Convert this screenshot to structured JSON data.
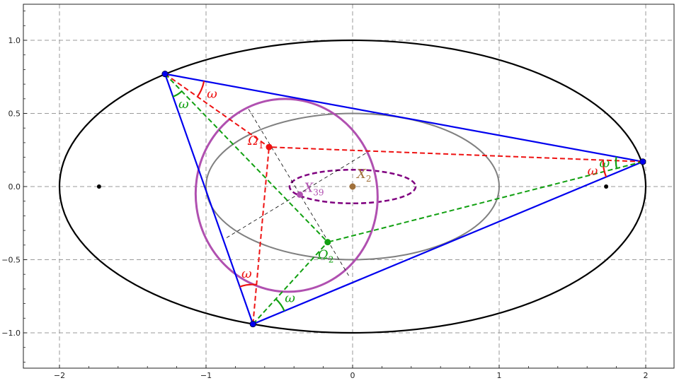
{
  "chart_data": {
    "type": "diagram",
    "xlim": [
      -2.25,
      2.25
    ],
    "ylim": [
      -1.25,
      1.25
    ],
    "grid": true,
    "x_ticks": [
      {
        "v": -2,
        "label": "−2"
      },
      {
        "v": -1,
        "label": "−1"
      },
      {
        "v": 0,
        "label": "0"
      },
      {
        "v": 1,
        "label": "1"
      },
      {
        "v": 2,
        "label": "2"
      }
    ],
    "y_ticks": [
      {
        "v": 1.0,
        "label": "1.0"
      },
      {
        "v": 0.5,
        "label": "0.5"
      },
      {
        "v": 0.0,
        "label": "0.0"
      },
      {
        "v": -0.5,
        "label": "−0.5"
      },
      {
        "v": -1.0,
        "label": "−1.0"
      }
    ],
    "outer_ellipse": {
      "cx": 0,
      "cy": 0,
      "rx": 2.0,
      "ry": 1.0
    },
    "inner_ellipse": {
      "cx": 0,
      "cy": 0,
      "rx": 1.0,
      "ry": 0.5
    },
    "dashed_ellipse": {
      "cx": 0,
      "cy": 0,
      "rx": 0.43,
      "ry": 0.115
    },
    "caustic_ellipse": {
      "cx": -0.45,
      "cy": -0.06,
      "rx": 0.62,
      "ry": 0.66,
      "rotation_deg": 8
    },
    "foci": [
      [
        -1.73,
        0
      ],
      [
        1.73,
        0
      ]
    ],
    "triangle": [
      [
        -1.28,
        0.77
      ],
      [
        1.98,
        0.17
      ],
      [
        -0.68,
        -0.94
      ]
    ],
    "brocard_1": [
      -0.57,
      0.27
    ],
    "brocard_2": [
      -0.17,
      -0.38
    ],
    "centroid": [
      0,
      0
    ],
    "x39": [
      -0.36,
      -0.055
    ],
    "labels": {
      "omega1_main": "Ω",
      "omega1_sub": "1",
      "omega2_main": "Ω",
      "omega2_sub": "2",
      "x2_main": "X",
      "x2_sub": "2",
      "x39_main": "X",
      "x39_sub": "39",
      "angle": "ω"
    },
    "colors": {
      "triangle": "#0000ee",
      "brocard_1": "#ee1111",
      "brocard_2": "#11a011",
      "outer": "#000000",
      "inner": "#808080",
      "caustic": "#b050b0",
      "dashed_ellipse": "#800080",
      "centroid": "#a0703a",
      "x39": "#b050b0"
    }
  }
}
